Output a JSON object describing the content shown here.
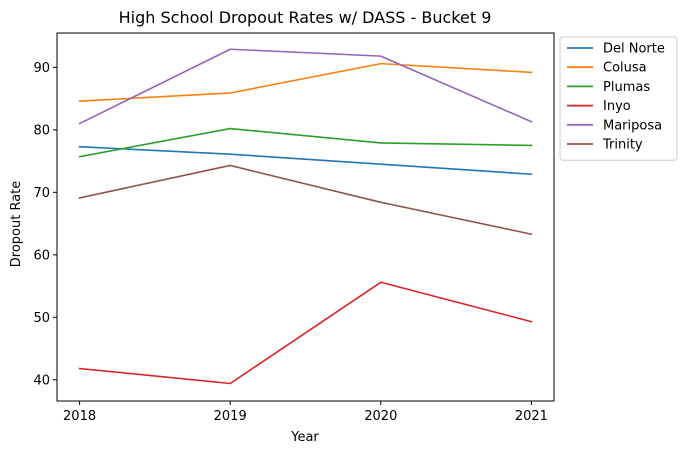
{
  "chart_data": {
    "type": "line",
    "title": "High School Dropout Rates w/ DASS - Bucket 9",
    "xlabel": "Year",
    "ylabel": "Dropout Rate",
    "x": [
      "2018",
      "2019",
      "2020",
      "2021"
    ],
    "xlim": [
      2017.85,
      2021.15
    ],
    "ylim": [
      36.6,
      95.5
    ],
    "yticks": [
      40,
      50,
      60,
      70,
      80,
      90
    ],
    "grid": false,
    "legend_position": "outside-top-right",
    "series": [
      {
        "name": "Del Norte",
        "color": "#1f77b4",
        "values": [
          77.3,
          76.1,
          74.5,
          72.9
        ]
      },
      {
        "name": "Colusa",
        "color": "#ff7f0e",
        "values": [
          84.6,
          85.9,
          90.6,
          89.2
        ]
      },
      {
        "name": "Plumas",
        "color": "#2ca02c",
        "values": [
          75.7,
          80.2,
          77.9,
          77.5
        ]
      },
      {
        "name": "Inyo",
        "color": "#d62728",
        "values": [
          41.8,
          39.4,
          55.6,
          49.3
        ]
      },
      {
        "name": "Mariposa",
        "color": "#9467bd",
        "values": [
          81.0,
          92.9,
          91.8,
          81.3
        ]
      },
      {
        "name": "Trinity",
        "color": "#8c564b",
        "values": [
          69.1,
          74.3,
          68.4,
          63.3
        ]
      }
    ]
  }
}
